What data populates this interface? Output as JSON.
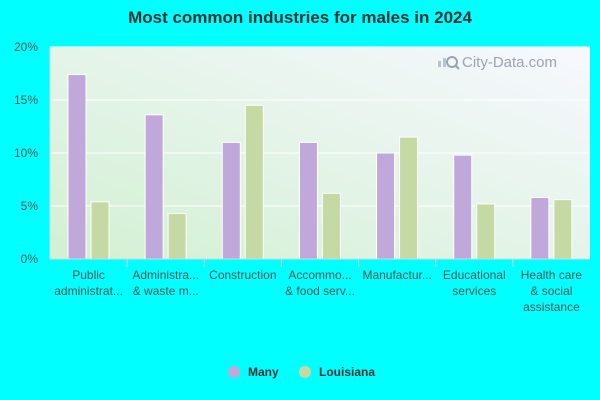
{
  "chart_data": {
    "type": "bar",
    "title": "Most common industries for males in 2024",
    "categories": [
      [
        "Public",
        "administrat..."
      ],
      [
        "Administra...",
        "& waste m..."
      ],
      [
        "Construction"
      ],
      [
        "Accommo...",
        "& food serv..."
      ],
      [
        "Manufactur..."
      ],
      [
        "Educational",
        "services"
      ],
      [
        "Health care",
        "& social",
        "assistance"
      ]
    ],
    "series": [
      {
        "name": "Many",
        "values": [
          17.4,
          13.6,
          11.0,
          11.0,
          10.0,
          9.8,
          5.8
        ]
      },
      {
        "name": "Louisiana",
        "values": [
          5.4,
          4.3,
          14.5,
          6.2,
          11.5,
          5.2,
          5.6
        ]
      }
    ],
    "yticks": [
      "0%",
      "5%",
      "10%",
      "15%",
      "20%"
    ],
    "ylim": [
      0,
      20
    ],
    "legend_position": "bottom-center",
    "grid": true,
    "colors": {
      "Many": "#c0a8da",
      "Louisiana": "#c5d9a4",
      "background": "#00ffff",
      "plot_top": "#f7f8ff",
      "plot_bottom": "#d2f0d2",
      "title": "#333333"
    }
  },
  "watermark": "City-Data.com"
}
